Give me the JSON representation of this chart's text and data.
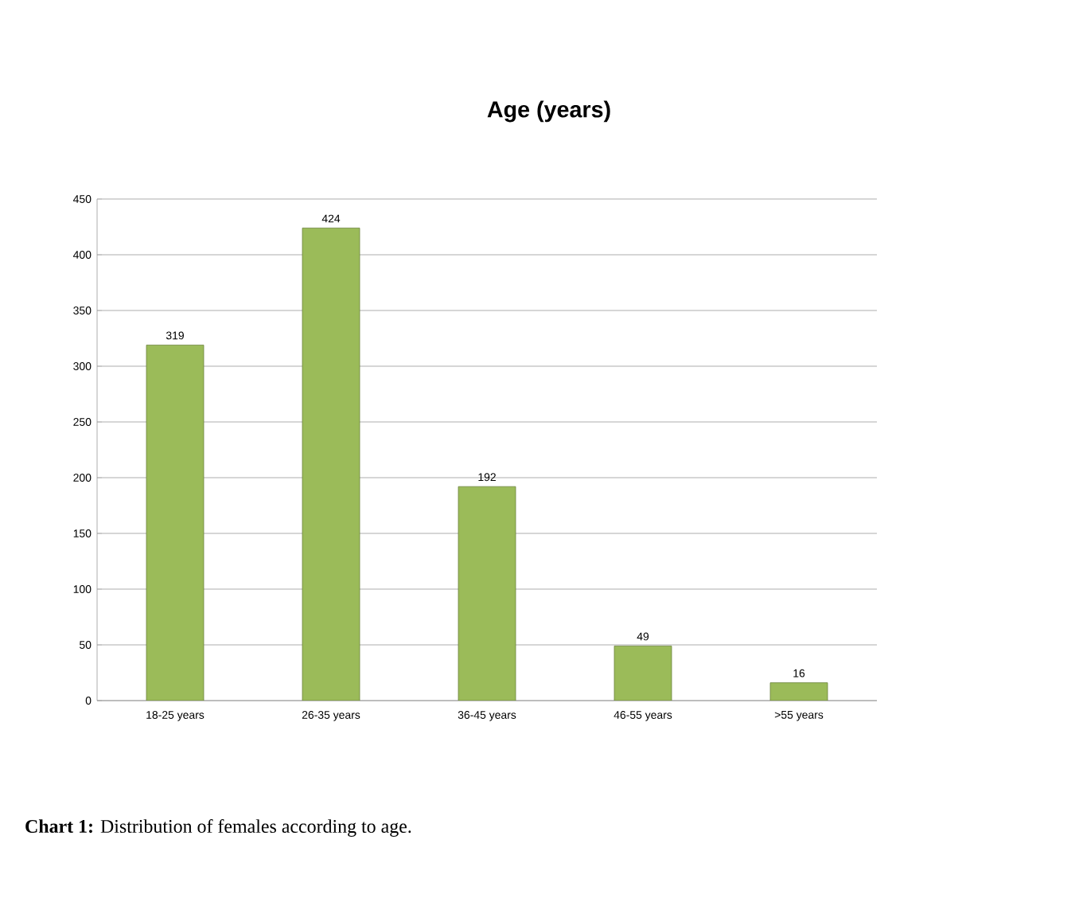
{
  "chart_data": {
    "type": "bar",
    "title": "Age (years)",
    "categories": [
      "18-25 years",
      "26-35 years",
      "36-45 years",
      "46-55 years",
      ">55 years"
    ],
    "values": [
      319,
      424,
      192,
      49,
      16
    ],
    "color": "#9bbb59",
    "ylim": [
      0,
      450
    ],
    "yticks": [
      0,
      50,
      100,
      150,
      200,
      250,
      300,
      350,
      400,
      450
    ],
    "grid": "y",
    "data_labels": true,
    "annotations": [
      "**Chart 1:** Distribution of females according to age."
    ]
  }
}
